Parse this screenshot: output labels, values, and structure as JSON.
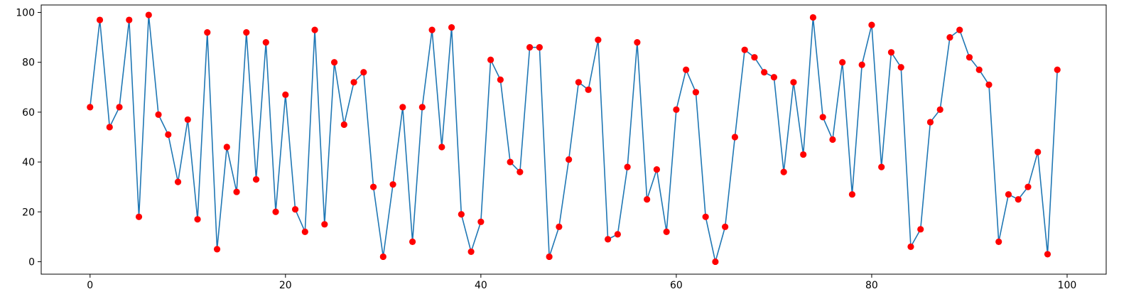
{
  "chart_data": {
    "type": "line",
    "title": "",
    "xlabel": "",
    "ylabel": "",
    "xlim": [
      -5,
      104
    ],
    "ylim": [
      -5,
      103
    ],
    "x_ticks": [
      0,
      20,
      40,
      60,
      80,
      100
    ],
    "y_ticks": [
      0,
      20,
      40,
      60,
      80,
      100
    ],
    "x_tick_labels": [
      "0",
      "20",
      "40",
      "60",
      "80",
      "100"
    ],
    "y_tick_labels": [
      "0",
      "20",
      "40",
      "60",
      "80",
      "100"
    ],
    "grid": false,
    "legend": "none",
    "line_color": "#1f77b4",
    "marker_color": "#ff0000",
    "series": [
      {
        "x": [
          0,
          1,
          2,
          3,
          4,
          5,
          6,
          7,
          8,
          9,
          10,
          11,
          12,
          13,
          14,
          15,
          16,
          17,
          18,
          19,
          20,
          21,
          22,
          23,
          24,
          25,
          26,
          27,
          28,
          29,
          30,
          31,
          32,
          33,
          34,
          35,
          36,
          37,
          38,
          39,
          40,
          41,
          42,
          43,
          44,
          45,
          46,
          47,
          48,
          49,
          50,
          51,
          52,
          53,
          54,
          55,
          56,
          57,
          58,
          59,
          60,
          61,
          62,
          63,
          64,
          65,
          66,
          67,
          68,
          69,
          70,
          71,
          72,
          73,
          74,
          75,
          76,
          77,
          78,
          79,
          80,
          81,
          82,
          83,
          84,
          85,
          86,
          87,
          88,
          89,
          90,
          91,
          92,
          93,
          94,
          95,
          96,
          97,
          98,
          99
        ],
        "values": [
          62,
          97,
          54,
          62,
          97,
          18,
          99,
          59,
          51,
          32,
          57,
          17,
          92,
          5,
          46,
          28,
          92,
          33,
          88,
          20,
          67,
          21,
          12,
          93,
          15,
          80,
          55,
          72,
          76,
          30,
          2,
          31,
          62,
          8,
          62,
          93,
          46,
          94,
          19,
          4,
          16,
          81,
          73,
          40,
          36,
          86,
          86,
          2,
          14,
          41,
          72,
          69,
          89,
          9,
          11,
          38,
          88,
          25,
          37,
          12,
          61,
          77,
          68,
          18,
          0,
          14,
          50,
          85,
          82,
          76,
          74,
          36,
          72,
          43,
          98,
          58,
          49,
          80,
          27,
          79,
          95,
          38,
          84,
          78,
          6,
          13,
          56,
          61,
          90,
          93,
          82,
          77,
          71,
          8,
          27,
          25,
          30,
          44,
          3,
          77
        ]
      }
    ]
  }
}
